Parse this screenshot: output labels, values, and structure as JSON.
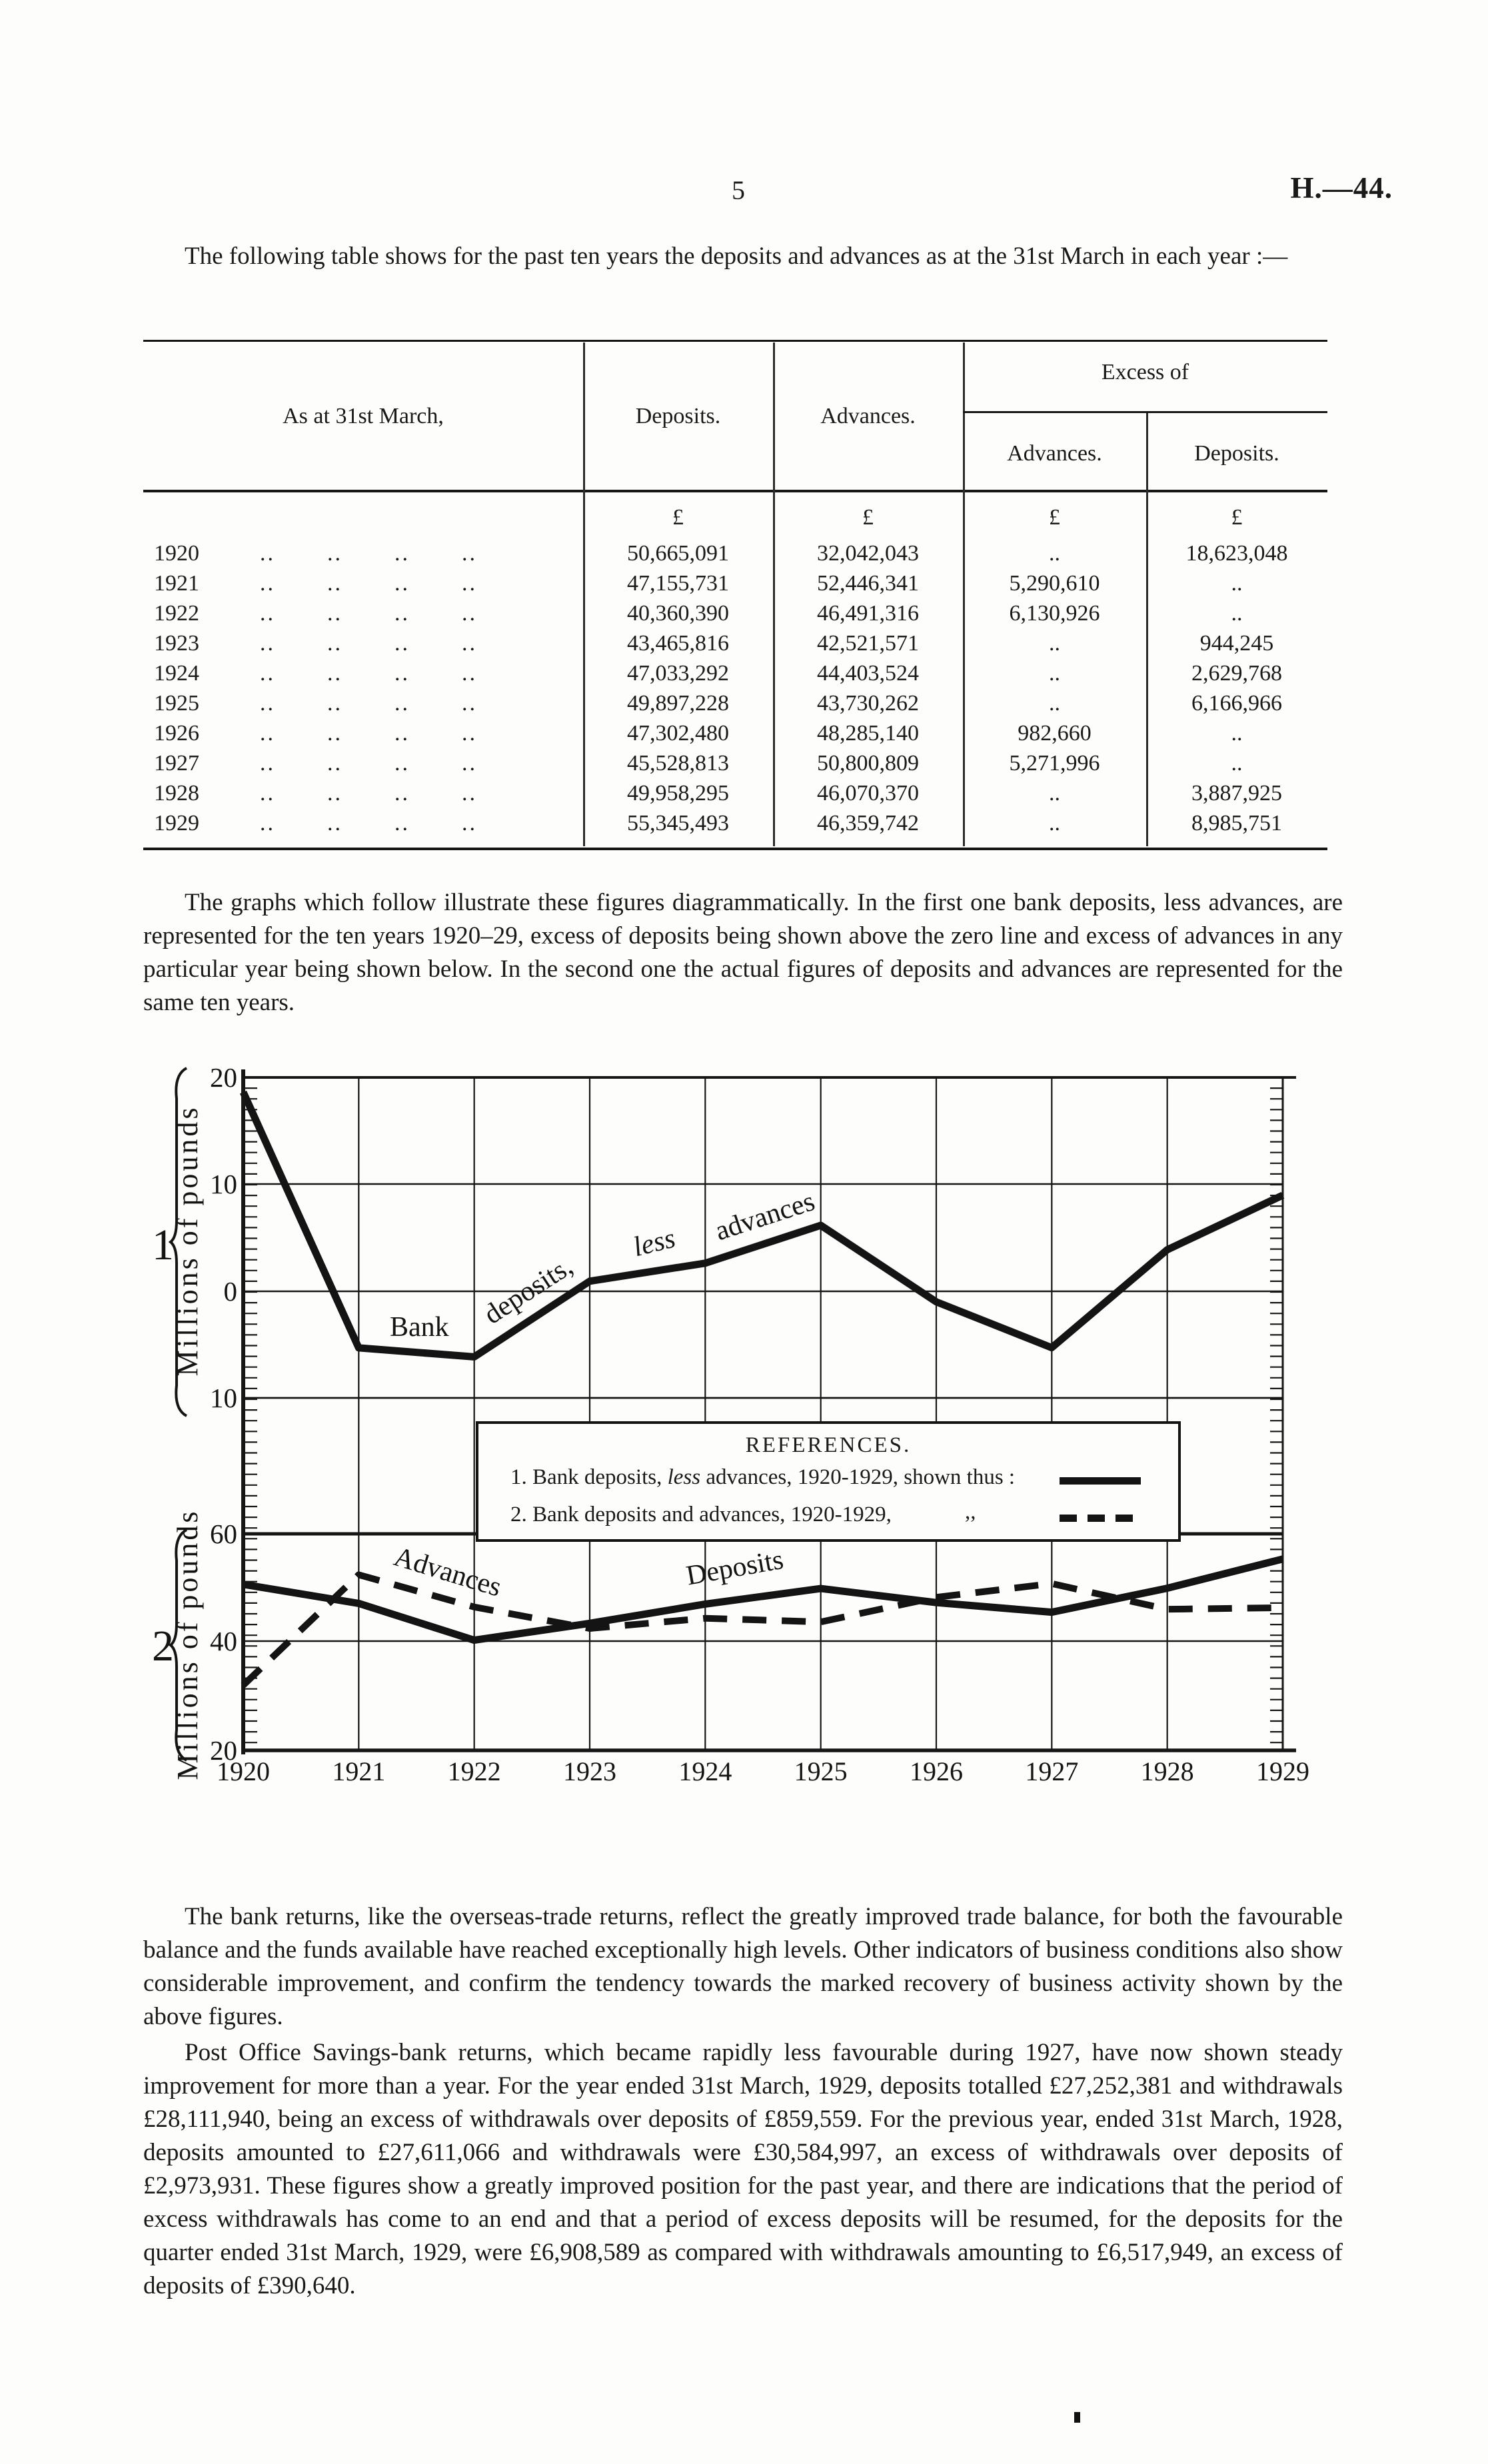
{
  "page": {
    "number": "5",
    "doc_ref": "H.—44."
  },
  "intro_text": "The following table shows for the past ten years the deposits and advances as at the 31st March in each year :—",
  "table": {
    "header": {
      "stub": "As at 31st March,",
      "deposits": "Deposits.",
      "advances": "Advances.",
      "excess_of": "Excess of",
      "excess_advances": "Advances.",
      "excess_deposits": "Deposits."
    },
    "currency_symbol": "£",
    "dot_leader": "..",
    "empty_cell": "..",
    "rows": [
      {
        "year": "1920",
        "deposits": "50,665,091",
        "advances": "32,042,043",
        "excess_advances": "..",
        "excess_deposits": "18,623,048"
      },
      {
        "year": "1921",
        "deposits": "47,155,731",
        "advances": "52,446,341",
        "excess_advances": "5,290,610",
        "excess_deposits": ".."
      },
      {
        "year": "1922",
        "deposits": "40,360,390",
        "advances": "46,491,316",
        "excess_advances": "6,130,926",
        "excess_deposits": ".."
      },
      {
        "year": "1923",
        "deposits": "43,465,816",
        "advances": "42,521,571",
        "excess_advances": "..",
        "excess_deposits": "944,245"
      },
      {
        "year": "1924",
        "deposits": "47,033,292",
        "advances": "44,403,524",
        "excess_advances": "..",
        "excess_deposits": "2,629,768"
      },
      {
        "year": "1925",
        "deposits": "49,897,228",
        "advances": "43,730,262",
        "excess_advances": "..",
        "excess_deposits": "6,166,966"
      },
      {
        "year": "1926",
        "deposits": "47,302,480",
        "advances": "48,285,140",
        "excess_advances": "982,660",
        "excess_deposits": ".."
      },
      {
        "year": "1927",
        "deposits": "45,528,813",
        "advances": "50,800,809",
        "excess_advances": "5,271,996",
        "excess_deposits": ".."
      },
      {
        "year": "1928",
        "deposits": "49,958,295",
        "advances": "46,070,370",
        "excess_advances": "..",
        "excess_deposits": "3,887,925"
      },
      {
        "year": "1929",
        "deposits": "55,345,493",
        "advances": "46,359,742",
        "excess_advances": "..",
        "excess_deposits": "8,985,751"
      }
    ]
  },
  "graphs_paragraph": "The graphs which follow illustrate these figures diagrammatically.  In the first one bank deposits, less advances, are represented for the ten years 1920–29, excess of deposits being shown above the zero line and excess of advances in any particular year being shown below.  In the second one the actual figures of deposits and advances are represented for the same ten years.",
  "figure": {
    "axis_label": "Millions of pounds",
    "graph1_number": "1",
    "graph2_number": "2",
    "graph1_yticks": [
      "20",
      "10",
      "0",
      "10"
    ],
    "graph2_yticks": [
      "60",
      "40",
      "20"
    ],
    "x_labels": [
      "1920",
      "1921",
      "1922",
      "1923",
      "1924",
      "1925",
      "1926",
      "1927",
      "1928",
      "1929"
    ],
    "curve_labels_graph1": {
      "bank": "Bank",
      "deposits": "deposits,",
      "less": "less",
      "advances": "advances"
    },
    "curve_labels_graph2": {
      "advances": "Advances",
      "deposits": "Deposits"
    },
    "legend": {
      "title": "REFERENCES.",
      "item1_pre": "1. Bank deposits, ",
      "item1_italic": "less",
      "item1_post": " advances, 1920-1929, shown thus :",
      "item2_text": "2. Bank deposits and advances, 1920-1929,",
      "item2_ditto": ",,"
    }
  },
  "chart_data": [
    {
      "type": "line",
      "title": "Bank deposits, less advances, 1920-1929",
      "x": [
        1920,
        1921,
        1922,
        1923,
        1924,
        1925,
        1926,
        1927,
        1928,
        1929
      ],
      "values": [
        18.623,
        -5.291,
        -6.131,
        0.944,
        2.63,
        6.167,
        -0.983,
        -5.272,
        3.888,
        8.986
      ],
      "ylabel": "Millions of pounds",
      "ylim": [
        -10,
        20
      ],
      "yticks": [
        20,
        10,
        0,
        -10
      ],
      "grid": true,
      "note": "Excess of deposits shown above the zero line, excess of advances below"
    },
    {
      "type": "line",
      "title": "Bank deposits and advances, 1920-1929",
      "x": [
        1920,
        1921,
        1922,
        1923,
        1924,
        1925,
        1926,
        1927,
        1928,
        1929
      ],
      "series": [
        {
          "name": "Deposits",
          "style": "solid",
          "values": [
            50.665,
            47.156,
            40.36,
            43.466,
            47.033,
            49.897,
            47.302,
            45.529,
            49.958,
            55.345
          ]
        },
        {
          "name": "Advances",
          "style": "dashed",
          "values": [
            32.042,
            52.446,
            46.491,
            42.522,
            44.404,
            43.73,
            48.285,
            50.801,
            46.07,
            46.36
          ]
        }
      ],
      "ylabel": "Millions of pounds",
      "ylim": [
        20,
        60
      ],
      "yticks": [
        60,
        40,
        20
      ],
      "grid": true,
      "legend_position": "between charts"
    }
  ],
  "bank_returns_paragraph": "The bank returns, like the overseas-trade returns, reflect the greatly improved trade balance, for both the favourable balance and the funds available have reached exceptionally high levels. Other indicators of business conditions also show considerable improvement, and confirm the tendency towards the marked recovery of business activity shown by the above figures.",
  "post_office_paragraph": "Post Office Savings-bank returns, which became rapidly less favourable during 1927, have now shown steady improvement for more than a year.  For the year ended 31st March, 1929, deposits totalled £27,252,381 and withdrawals £28,111,940, being an excess of withdrawals over deposits of £859,559.  For the previous year, ended 31st March, 1928, deposits amounted to £27,611,066 and withdrawals were £30,584,997, an excess of withdrawals over deposits of £2,973,931.  These figures show a greatly improved position for the past year, and there are indications that the period of excess withdrawals has come to an end and that a period of excess deposits will be resumed, for the deposits for the quarter ended 31st March, 1929, were £6,908,589 as compared with withdrawals amounting to £6,517,949, an excess of deposits of £390,640."
}
